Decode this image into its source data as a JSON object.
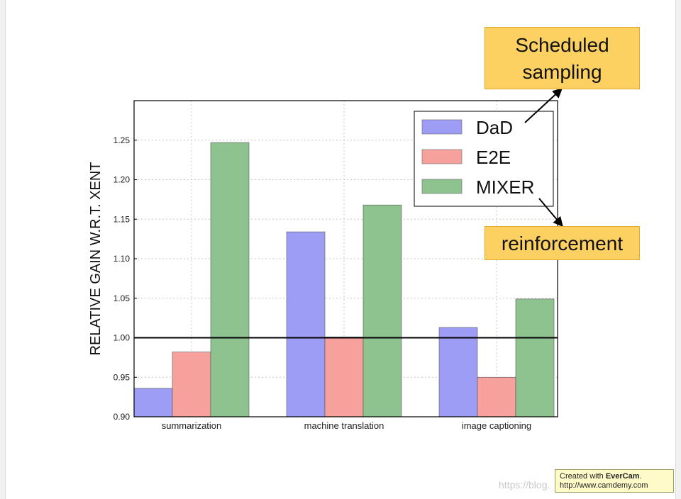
{
  "chart_data": {
    "type": "bar",
    "categories": [
      "summarization",
      "machine translation",
      "image captioning"
    ],
    "series": [
      {
        "name": "DaD",
        "values": [
          0.936,
          1.134,
          1.013
        ],
        "color": "#9d9df6"
      },
      {
        "name": "E2E",
        "values": [
          0.982,
          1.001,
          0.95
        ],
        "color": "#f7a19c"
      },
      {
        "name": "MIXER",
        "values": [
          1.247,
          1.168,
          1.049
        ],
        "color": "#8ec38f"
      }
    ],
    "ylabel": "RELATIVE  GAIN  W.R.T.  XENT",
    "xlabel": "",
    "ylim": [
      0.9,
      1.3
    ],
    "yticks": [
      "0.90",
      "0.95",
      "1.00",
      "1.05",
      "1.10",
      "1.15",
      "1.20",
      "1.25"
    ],
    "baseline": 1.0,
    "grid": true,
    "legend_position": "top-right"
  },
  "annotations": {
    "scheduled_sampling": [
      "Scheduled",
      "sampling"
    ],
    "reinforcement": "reinforcement"
  },
  "badge": {
    "prefix": "Created with ",
    "brand": "EverCam",
    "suffix": ".",
    "url": "http://www.camdemy.com"
  },
  "watermark": "https://blog."
}
